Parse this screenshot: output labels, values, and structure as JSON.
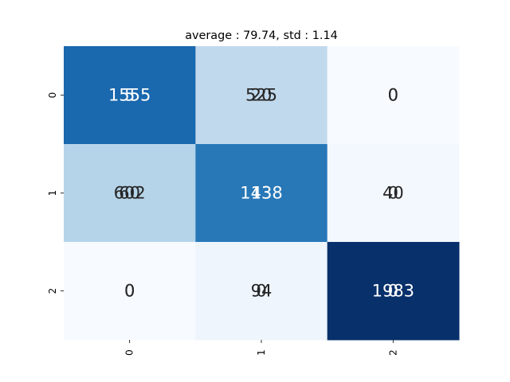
{
  "chart_data": {
    "type": "heatmap",
    "title": "average : 79.74, std : 1.14",
    "xlabel": "",
    "ylabel": "",
    "x_tick_labels": [
      "0",
      "1",
      "2"
    ],
    "y_tick_labels": [
      "0",
      "1",
      "2"
    ],
    "colormap": "Blues",
    "color_range": [
      0,
      1983
    ],
    "colorbar": false,
    "values": [
      [
        1555,
        525,
        0
      ],
      [
        602,
        1438,
        40
      ],
      [
        0,
        94,
        1983
      ]
    ],
    "overlay_annotations": [
      [
        5,
        20,
        0
      ],
      [
        60,
        13,
        0
      ],
      [
        0,
        0,
        0
      ]
    ],
    "colors": {
      "background": "#ffffff",
      "dark_text": "#262626",
      "light_text": "#ffffff"
    }
  }
}
